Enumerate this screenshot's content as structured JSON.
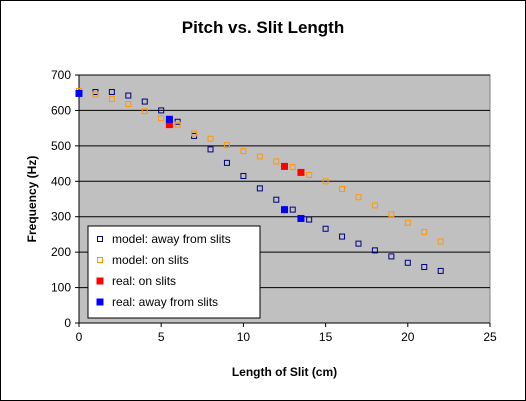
{
  "chart_data": {
    "type": "scatter",
    "title": "Pitch vs. Slit Length",
    "xlabel": "Length of Slit (cm)",
    "ylabel": "Frequency (Hz)",
    "xlim": [
      0,
      25
    ],
    "ylim": [
      0,
      700
    ],
    "xticks": [
      "0",
      "5",
      "10",
      "15",
      "20",
      "25"
    ],
    "yticks": [
      "0",
      "100",
      "200",
      "300",
      "400",
      "500",
      "600",
      "700"
    ],
    "grid": "horizontal",
    "plot_background": "#c0c0c0",
    "legend_position": "bottom-left",
    "series": [
      {
        "name": "model: away from slits",
        "marker": "hollow-square",
        "color": "#000080",
        "x": [
          0,
          1,
          2,
          3,
          4,
          5,
          6,
          7,
          8,
          9,
          10,
          11,
          12,
          13,
          14,
          15,
          16,
          17,
          18,
          19,
          20,
          21,
          22
        ],
        "y": [
          648,
          652,
          652,
          642,
          625,
          600,
          568,
          528,
          490,
          452,
          415,
          380,
          348,
          320,
          292,
          266,
          244,
          224,
          205,
          188,
          170,
          158,
          147
        ]
      },
      {
        "name": "model: on slits",
        "marker": "hollow-square",
        "color": "#ff9900",
        "x": [
          0,
          1,
          2,
          3,
          4,
          5,
          6,
          7,
          8,
          9,
          10,
          11,
          12,
          13,
          14,
          15,
          16,
          17,
          18,
          19,
          20,
          21,
          22
        ],
        "y": [
          655,
          645,
          632,
          618,
          598,
          578,
          560,
          535,
          520,
          502,
          485,
          470,
          456,
          440,
          418,
          400,
          378,
          355,
          332,
          307,
          283,
          257,
          230
        ]
      },
      {
        "name": "real: on slits",
        "marker": "filled-square",
        "color": "#ff0000",
        "x": [
          5.5,
          12.5,
          13.5
        ],
        "y": [
          560,
          442,
          425
        ]
      },
      {
        "name": "real: away from slits",
        "marker": "filled-square",
        "color": "#0000ff",
        "x": [
          0,
          5.5,
          12.5,
          13.5
        ],
        "y": [
          648,
          575,
          320,
          295
        ]
      }
    ]
  }
}
